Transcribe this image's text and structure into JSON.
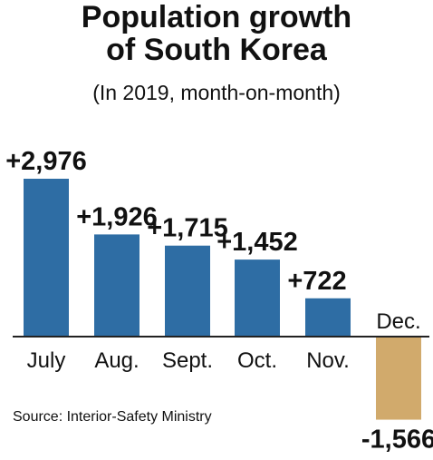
{
  "chart_data": {
    "type": "bar",
    "title_lines": [
      "Population growth",
      "of South Korea"
    ],
    "subtitle": "(In 2019, month-on-month)",
    "categories": [
      "July",
      "Aug.",
      "Sept.",
      "Oct.",
      "Nov.",
      "Dec."
    ],
    "values": [
      2976,
      1926,
      1715,
      1452,
      722,
      -1566
    ],
    "value_labels": [
      "+2,976",
      "+1,926",
      "+1,715",
      "+1,452",
      "+722",
      "-1,566"
    ],
    "source": "Source: Interior-Safety Ministry",
    "grid": false,
    "legend": "none",
    "colors": {
      "positive": "#2e6da4",
      "negative": "#d1aa6c",
      "baseline": "#222222"
    }
  }
}
